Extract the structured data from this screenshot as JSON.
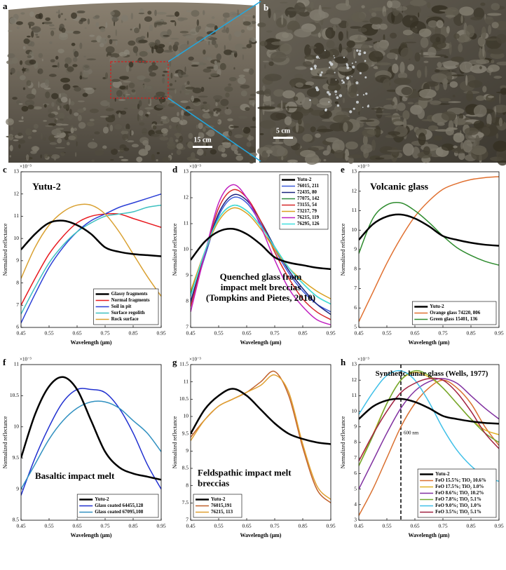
{
  "photos": [
    {
      "label": "a",
      "scale": "15 cm"
    },
    {
      "label": "b",
      "scale": "5 cm"
    }
  ],
  "chart_data": [
    {
      "type": "line",
      "panel": "c",
      "title": [
        "Yutu-2"
      ],
      "xlabel": "Wavelength (μm)",
      "ylabel": "Normalized reflectance",
      "y_multiplier": "×10⁻³",
      "legend": "lower right",
      "x": [
        0.45,
        0.5,
        0.55,
        0.6,
        0.65,
        0.7,
        0.75,
        0.8,
        0.85,
        0.9,
        0.95
      ],
      "xlim": [
        0.45,
        0.95
      ],
      "xticks": [
        0.45,
        0.55,
        0.65,
        0.75,
        0.85,
        0.95
      ],
      "ylim": [
        6,
        13
      ],
      "yticks": [
        6,
        7,
        8,
        9,
        10,
        11,
        12,
        13
      ],
      "series": [
        {
          "name": "Glassy fragments",
          "color": "#000000",
          "values": [
            9.5,
            10.2,
            10.7,
            10.8,
            10.6,
            10.2,
            9.6,
            9.4,
            9.3,
            9.25,
            9.2
          ]
        },
        {
          "name": "Normal fragments",
          "color": "#e8191f",
          "values": [
            7.0,
            8.2,
            9.3,
            10.1,
            10.7,
            11.0,
            11.1,
            11.1,
            10.9,
            10.7,
            10.5
          ]
        },
        {
          "name": "Soil in pit",
          "color": "#2b3fd6",
          "values": [
            6.2,
            7.5,
            8.7,
            9.6,
            10.3,
            10.8,
            11.1,
            11.4,
            11.6,
            11.8,
            12.0
          ]
        },
        {
          "name": "Surface regolith",
          "color": "#3ec0c0",
          "values": [
            6.6,
            7.8,
            8.9,
            9.7,
            10.3,
            10.7,
            11.0,
            11.1,
            11.2,
            11.4,
            11.5
          ]
        },
        {
          "name": "Rock surface",
          "color": "#d9a030",
          "values": [
            8.2,
            9.6,
            10.6,
            11.2,
            11.5,
            11.5,
            11.1,
            10.3,
            9.3,
            8.3,
            7.4
          ]
        }
      ]
    },
    {
      "type": "line",
      "panel": "d",
      "title": [
        "Quenched glass from",
        "impact melt breccias",
        "(Tompkins and Pietes, 2010)"
      ],
      "xlabel": "Wavelength (μm)",
      "ylabel": "Normalized reflectance",
      "y_multiplier": "×10⁻³",
      "legend": "upper right",
      "x": [
        0.45,
        0.5,
        0.55,
        0.6,
        0.65,
        0.7,
        0.75,
        0.8,
        0.85,
        0.9,
        0.95
      ],
      "xlim": [
        0.45,
        0.95
      ],
      "xticks": [
        0.45,
        0.55,
        0.65,
        0.75,
        0.85,
        0.95
      ],
      "ylim": [
        7,
        13
      ],
      "yticks": [
        7,
        8,
        9,
        10,
        11,
        12,
        13
      ],
      "series": [
        {
          "name": "Yutu-2",
          "color": "#000000",
          "values": [
            9.6,
            10.3,
            10.7,
            10.8,
            10.6,
            10.2,
            9.7,
            9.5,
            9.4,
            9.3,
            9.25
          ]
        },
        {
          "name": "76015, 211",
          "color": "#3b5bd9",
          "values": [
            7.9,
            9.7,
            11.3,
            12.0,
            11.8,
            11.0,
            10.0,
            9.1,
            8.4,
            7.9,
            7.6
          ]
        },
        {
          "name": "72435, 80",
          "color": "#1a237e",
          "values": [
            8.0,
            9.8,
            11.4,
            12.1,
            11.9,
            11.1,
            10.1,
            9.2,
            8.5,
            7.9,
            7.5
          ]
        },
        {
          "name": "77075, 142",
          "color": "#2e8b3e",
          "values": [
            8.3,
            9.9,
            11.2,
            11.7,
            11.5,
            10.9,
            10.1,
            9.3,
            8.7,
            8.2,
            7.9
          ]
        },
        {
          "name": "73155, 54",
          "color": "#d62728",
          "values": [
            7.8,
            9.8,
            11.6,
            12.3,
            12.0,
            11.1,
            9.9,
            8.9,
            8.1,
            7.6,
            7.3
          ]
        },
        {
          "name": "73217, 79",
          "color": "#d9a020",
          "values": [
            8.4,
            9.9,
            11.1,
            11.6,
            11.4,
            10.8,
            10.0,
            9.3,
            8.8,
            8.4,
            8.1
          ]
        },
        {
          "name": "76215, 119",
          "color": "#c020c0",
          "values": [
            7.6,
            9.8,
            11.8,
            12.5,
            12.0,
            10.9,
            9.6,
            8.5,
            7.8,
            7.3,
            7.1
          ]
        },
        {
          "name": "76295, 126",
          "color": "#40e0e0",
          "values": [
            8.2,
            9.9,
            11.2,
            11.7,
            11.5,
            10.9,
            10.1,
            9.3,
            8.7,
            8.2,
            7.9
          ]
        }
      ]
    },
    {
      "type": "line",
      "panel": "e",
      "title": [
        "Volcanic glass"
      ],
      "xlabel": "Wavelength (μm)",
      "ylabel": "Normalized reflectance",
      "y_multiplier": "×10⁻³",
      "legend": "lower right",
      "x": [
        0.45,
        0.5,
        0.55,
        0.6,
        0.65,
        0.7,
        0.75,
        0.8,
        0.85,
        0.9,
        0.95
      ],
      "xlim": [
        0.45,
        0.95
      ],
      "xticks": [
        0.45,
        0.55,
        0.65,
        0.75,
        0.85,
        0.95
      ],
      "ylim": [
        5,
        13
      ],
      "yticks": [
        5,
        6,
        7,
        8,
        9,
        10,
        11,
        12,
        13
      ],
      "series": [
        {
          "name": "Yutu-2",
          "color": "#000000",
          "values": [
            9.5,
            10.3,
            10.7,
            10.8,
            10.6,
            10.2,
            9.7,
            9.5,
            9.35,
            9.25,
            9.2
          ]
        },
        {
          "name": "Orange glass 74220, 806",
          "color": "#e07030",
          "values": [
            5.3,
            6.8,
            8.3,
            9.6,
            10.7,
            11.5,
            12.1,
            12.4,
            12.6,
            12.7,
            12.75
          ]
        },
        {
          "name": "Green glass 15401, 136",
          "color": "#2e8b2e",
          "values": [
            8.8,
            10.6,
            11.3,
            11.4,
            11.0,
            10.4,
            9.7,
            9.1,
            8.7,
            8.4,
            8.2
          ]
        }
      ]
    },
    {
      "type": "line",
      "panel": "f",
      "title": [
        "Basaltic impact melt"
      ],
      "xlabel": "Wavelength (μm)",
      "ylabel": "Normalized reflectance",
      "y_multiplier": "×10⁻³",
      "legend": "lower right",
      "x": [
        0.45,
        0.5,
        0.55,
        0.6,
        0.65,
        0.7,
        0.75,
        0.8,
        0.85,
        0.9,
        0.95
      ],
      "xlim": [
        0.45,
        0.95
      ],
      "xticks": [
        0.45,
        0.55,
        0.65,
        0.75,
        0.85,
        0.95
      ],
      "ylim": [
        8.5,
        11
      ],
      "yticks": [
        8.5,
        9,
        9.5,
        10,
        10.5,
        11
      ],
      "series": [
        {
          "name": "Yutu-2",
          "color": "#000000",
          "values": [
            9.5,
            10.2,
            10.65,
            10.8,
            10.6,
            10.1,
            9.6,
            9.35,
            9.25,
            9.2,
            9.15
          ]
        },
        {
          "name": "Glass coated 64455,128",
          "color": "#2030d0",
          "values": [
            8.9,
            9.5,
            10.0,
            10.4,
            10.6,
            10.6,
            10.55,
            10.3,
            9.9,
            9.4,
            9.0
          ]
        },
        {
          "name": "Glass coated 67095,108",
          "color": "#3090c0",
          "values": [
            9.0,
            9.4,
            9.8,
            10.1,
            10.3,
            10.4,
            10.4,
            10.3,
            10.1,
            9.9,
            9.6
          ]
        }
      ]
    },
    {
      "type": "line",
      "panel": "g",
      "title": [
        "Feldspathic impact melt",
        "breccias"
      ],
      "xlabel": "Wavelength (μm)",
      "ylabel": "Normalized reflectance",
      "y_multiplier": "×10⁻³",
      "legend": "lower left",
      "x": [
        0.45,
        0.5,
        0.55,
        0.6,
        0.65,
        0.7,
        0.75,
        0.8,
        0.85,
        0.9,
        0.95
      ],
      "xlim": [
        0.45,
        0.95
      ],
      "xticks": [
        0.45,
        0.55,
        0.65,
        0.75,
        0.85,
        0.95
      ],
      "ylim": [
        7,
        11.5
      ],
      "yticks": [
        7,
        7.5,
        8,
        8.5,
        9,
        9.5,
        10,
        10.5,
        11,
        11.5
      ],
      "series": [
        {
          "name": "Yutu-2",
          "color": "#000000",
          "values": [
            9.5,
            10.2,
            10.6,
            10.8,
            10.6,
            10.2,
            9.8,
            9.5,
            9.35,
            9.25,
            9.2
          ]
        },
        {
          "name": "76015,191",
          "color": "#c0602a",
          "values": [
            9.4,
            9.9,
            10.3,
            10.5,
            10.7,
            11.0,
            11.3,
            10.6,
            9.1,
            7.9,
            7.5
          ]
        },
        {
          "name": "76215, 113",
          "color": "#e0a030",
          "values": [
            9.3,
            9.9,
            10.3,
            10.5,
            10.7,
            10.9,
            11.2,
            10.7,
            9.2,
            8.0,
            7.6
          ]
        }
      ]
    },
    {
      "type": "line",
      "panel": "h",
      "title": [
        "Synthetic lunar glass (Wells, 1977)"
      ],
      "xlabel": "Wavelength (μm)",
      "ylabel": "Normalized reflectance",
      "y_multiplier": "×10⁻³",
      "legend": "lower right",
      "vline": {
        "x": 0.6,
        "label": "600 nm"
      },
      "x": [
        0.45,
        0.5,
        0.55,
        0.6,
        0.65,
        0.7,
        0.75,
        0.8,
        0.85,
        0.9,
        0.95
      ],
      "xlim": [
        0.45,
        0.95
      ],
      "xticks": [
        0.45,
        0.55,
        0.65,
        0.75,
        0.85,
        0.95
      ],
      "ylim": [
        3,
        13
      ],
      "yticks": [
        3,
        4,
        5,
        6,
        7,
        8,
        9,
        10,
        11,
        12,
        13
      ],
      "series": [
        {
          "name": "Yutu-2",
          "color": "#000000",
          "values": [
            9.5,
            10.3,
            10.7,
            10.8,
            10.6,
            10.2,
            9.7,
            9.5,
            9.35,
            9.25,
            9.2
          ]
        },
        {
          "name": "FeO 15.5%; TiO₂ 10.6%",
          "color": "#d97030",
          "values": [
            3.3,
            5.0,
            7.0,
            9.0,
            10.5,
            11.5,
            12.0,
            11.5,
            10.5,
            9.0,
            7.8
          ]
        },
        {
          "name": "FeO 17.5%; TiO₂ 1.0%",
          "color": "#e0b020",
          "values": [
            6.5,
            8.5,
            10.5,
            12.0,
            12.5,
            12.2,
            11.5,
            10.5,
            9.5,
            8.8,
            8.5
          ]
        },
        {
          "name": "FeO 8.6%; TiO₂ 10.2%",
          "color": "#8030a0",
          "values": [
            5.0,
            6.8,
            8.6,
            10.2,
            11.3,
            11.9,
            12.1,
            11.8,
            11.0,
            10.2,
            9.5
          ]
        },
        {
          "name": "FeO 7.8%; TiO₂ 5.1%",
          "color": "#70a830",
          "values": [
            6.5,
            8.4,
            10.5,
            12.0,
            12.6,
            12.3,
            11.5,
            10.5,
            9.5,
            8.6,
            8.0
          ]
        },
        {
          "name": "FeO 9.0%; TiO₂ 1.0%",
          "color": "#40c0e8",
          "values": [
            9.8,
            11.2,
            12.3,
            12.6,
            12.0,
            10.6,
            8.9,
            7.5,
            6.5,
            5.8,
            5.5
          ]
        },
        {
          "name": "FeO 3.5%; TiO₂ 5.1%",
          "color": "#a02040",
          "values": [
            6.8,
            8.5,
            10.0,
            11.2,
            11.8,
            12.1,
            12.0,
            11.2,
            10.0,
            8.6,
            7.6
          ]
        }
      ]
    }
  ]
}
